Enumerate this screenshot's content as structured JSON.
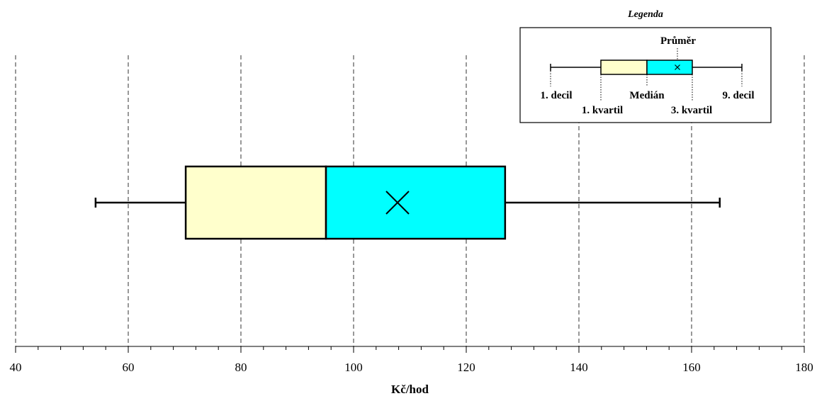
{
  "chart_data": {
    "type": "boxplot",
    "xlabel": "Kč/hod",
    "xlim": [
      40,
      180
    ],
    "xticks": [
      40,
      60,
      80,
      100,
      120,
      140,
      160,
      180
    ],
    "grid": true,
    "box": {
      "decile_1": 54.2,
      "quartile_1": 70.2,
      "median": 95.1,
      "mean": 107.8,
      "quartile_3": 126.9,
      "decile_9": 165.0
    },
    "colors": {
      "lower_box": "#ffffcc",
      "upper_box": "#00ffff",
      "line": "#000000"
    },
    "legend": {
      "title": "Legenda",
      "position": "top-right",
      "labels": {
        "mean": "Průměr",
        "decile_1": "1. decil",
        "quartile_1": "1. kvartil",
        "median": "Medián",
        "quartile_3": "3. kvartil",
        "decile_9": "9. decil"
      }
    }
  }
}
